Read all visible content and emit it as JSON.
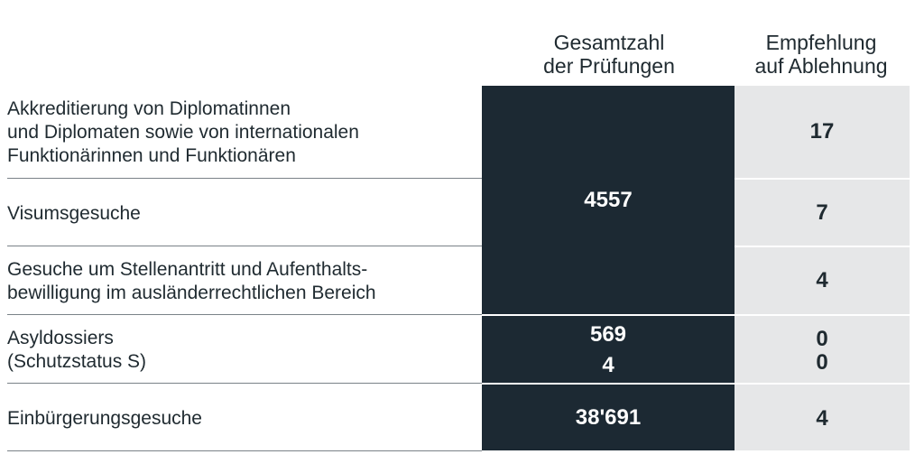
{
  "header": {
    "total_line1": "Gesamtzahl",
    "total_line2": "der Prüfungen",
    "reject_line1": "Empfehlung",
    "reject_line2": "auf Ablehnung"
  },
  "rows": [
    {
      "label_lines": [
        "Akkreditierung von Diplomatinnen",
        "und Diplomaten sowie von internationalen",
        "Funktionärinnen und Funktionären"
      ],
      "rejections": "17"
    },
    {
      "label_lines": [
        "Visumsgesuche"
      ],
      "rejections": "7"
    },
    {
      "label_lines": [
        "Gesuche um Stellenantritt und Aufenthalts-",
        "bewilligung im ausländerrechtlichen Bereich"
      ],
      "rejections": "4"
    },
    {
      "label_lines": [
        "Asyldossiers",
        "(Schutzstatus S)"
      ],
      "total_lines": [
        "569",
        "4"
      ],
      "rejection_lines": [
        "0",
        "0"
      ]
    },
    {
      "label_lines": [
        "Einbürgerungsgesuche"
      ],
      "total": "38'691",
      "rejections": "4"
    }
  ],
  "combined_total": "4557",
  "colors": {
    "dark_column": "#1c2933",
    "light_column": "#e6e7e8",
    "text": "#1f2a30"
  }
}
